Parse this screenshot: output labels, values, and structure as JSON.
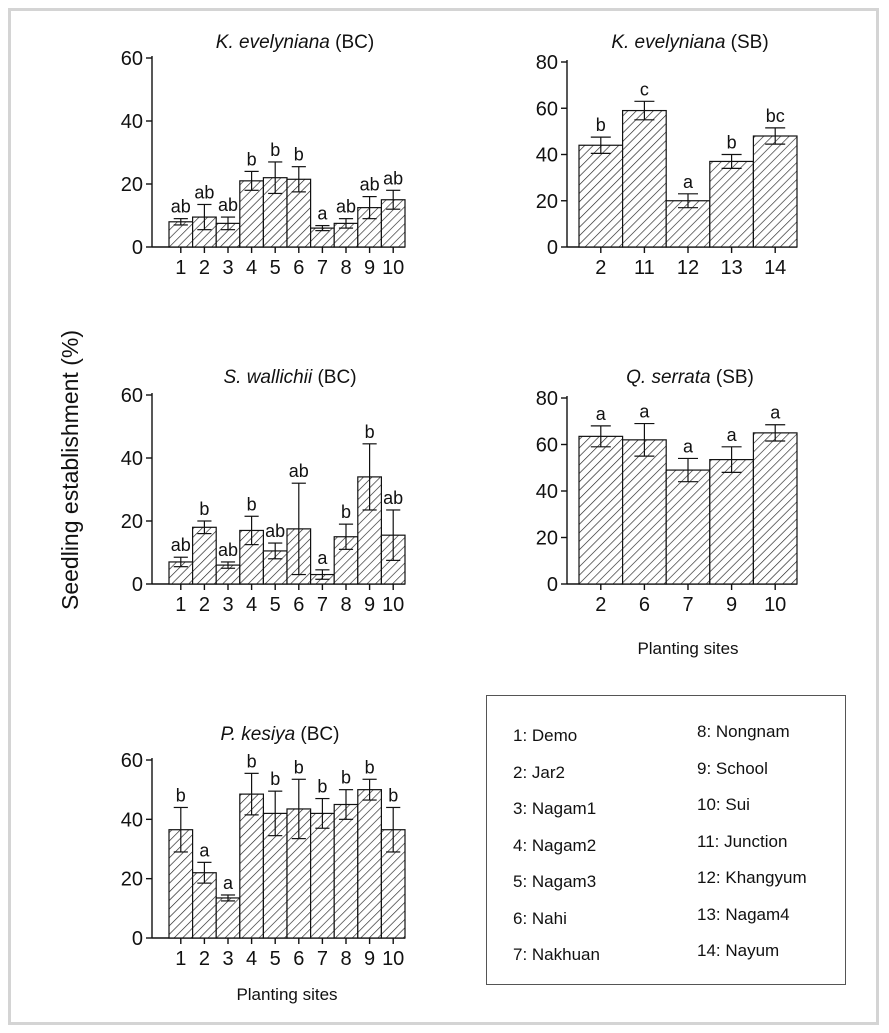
{
  "figure": {
    "y_label": "Seedling establishment (%)"
  },
  "chart_data": [
    {
      "type": "bar",
      "title_italic": "K. evelyniana",
      "title_rest": " (BC)",
      "categories": [
        "1",
        "2",
        "3",
        "4",
        "5",
        "6",
        "7",
        "8",
        "9",
        "10"
      ],
      "values": [
        8,
        9.5,
        7.5,
        21,
        22,
        21.5,
        6,
        7.5,
        12.5,
        15
      ],
      "errors": [
        1,
        4,
        2,
        3,
        5,
        4,
        0.8,
        1.5,
        3.5,
        3
      ],
      "letters": [
        "ab",
        "ab",
        "ab",
        "b",
        "b",
        "b",
        "a",
        "ab",
        "ab",
        "ab"
      ],
      "ylim": [
        0,
        60
      ],
      "yticks": [
        0,
        20,
        40,
        60
      ],
      "xlabel": ""
    },
    {
      "type": "bar",
      "title_italic": "K. evelyniana",
      "title_rest": " (SB)",
      "categories": [
        "2",
        "11",
        "12",
        "13",
        "14"
      ],
      "values": [
        44,
        59,
        20,
        37,
        48
      ],
      "errors": [
        3.5,
        4,
        3,
        3,
        3.5
      ],
      "letters": [
        "b",
        "c",
        "a",
        "b",
        "bc"
      ],
      "ylim": [
        0,
        80
      ],
      "yticks": [
        0,
        20,
        40,
        60,
        80
      ],
      "xlabel": ""
    },
    {
      "type": "bar",
      "title_italic": "S. wallichii",
      "title_rest": " (BC)",
      "categories": [
        "1",
        "2",
        "3",
        "4",
        "5",
        "6",
        "7",
        "8",
        "9",
        "10"
      ],
      "values": [
        7,
        18,
        6,
        17,
        10.5,
        17.5,
        3,
        15,
        34,
        15.5
      ],
      "errors": [
        1.5,
        2,
        1,
        4.5,
        2.5,
        14.5,
        1.5,
        4,
        10.5,
        8
      ],
      "letters": [
        "ab",
        "b",
        "ab",
        "b",
        "ab",
        "ab",
        "a",
        "b",
        "b",
        "ab"
      ],
      "ylim": [
        0,
        60
      ],
      "yticks": [
        0,
        20,
        40,
        60
      ],
      "xlabel": ""
    },
    {
      "type": "bar",
      "title_italic": "Q. serrata",
      "title_rest": " (SB)",
      "categories": [
        "2",
        "6",
        "7",
        "9",
        "10"
      ],
      "values": [
        63.5,
        62,
        49,
        53.5,
        65
      ],
      "errors": [
        4.5,
        7,
        5,
        5.5,
        3.5
      ],
      "letters": [
        "a",
        "a",
        "a",
        "a",
        "a"
      ],
      "ylim": [
        0,
        80
      ],
      "yticks": [
        0,
        20,
        40,
        60,
        80
      ],
      "xlabel": "Planting sites"
    },
    {
      "type": "bar",
      "title_italic": "P. kesiya",
      "title_rest": " (BC)",
      "categories": [
        "1",
        "2",
        "3",
        "4",
        "5",
        "6",
        "7",
        "8",
        "9",
        "10"
      ],
      "values": [
        36.5,
        22,
        13.5,
        48.5,
        42,
        43.5,
        42,
        45,
        50,
        36.5
      ],
      "errors": [
        7.5,
        3.5,
        1,
        7,
        7.5,
        10,
        5,
        5,
        3.5,
        7.5
      ],
      "letters": [
        "b",
        "a",
        "a",
        "b",
        "b",
        "b",
        "b",
        "b",
        "b",
        "b"
      ],
      "ylim": [
        0,
        60
      ],
      "yticks": [
        0,
        20,
        40,
        60
      ],
      "xlabel": "Planting sites"
    }
  ],
  "legend": {
    "left": [
      "1: Demo",
      "2: Jar2",
      "3: Nagam1",
      "4: Nagam2",
      "5: Nagam3",
      "6: Nahi",
      "7: Nakhuan"
    ],
    "right": [
      "8: Nongnam",
      "9: School",
      "10: Sui",
      "11: Junction",
      "12: Khangyum",
      "13: Nagam4",
      "14: Nayum"
    ]
  }
}
